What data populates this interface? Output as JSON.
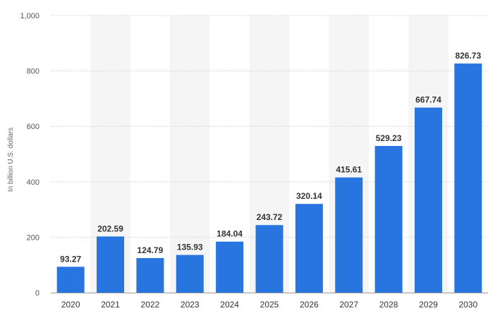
{
  "chart_data": {
    "type": "bar",
    "categories": [
      "2020",
      "2021",
      "2022",
      "2023",
      "2024",
      "2025",
      "2026",
      "2027",
      "2028",
      "2029",
      "2030"
    ],
    "values": [
      93.27,
      202.59,
      124.79,
      135.93,
      184.04,
      243.72,
      320.14,
      415.61,
      529.23,
      667.74,
      826.73
    ],
    "value_labels": [
      "93.27",
      "202.59",
      "124.79",
      "135.93",
      "184.04",
      "243.72",
      "320.14",
      "415.61",
      "529.23",
      "667.74",
      "826.73"
    ],
    "title": "",
    "xlabel": "",
    "ylabel": "In billion U.S. dollars",
    "ylim": [
      0,
      1000
    ],
    "yticks": [
      0,
      200,
      400,
      600,
      800,
      1000
    ],
    "ytick_labels": [
      "0",
      "200",
      "400",
      "600",
      "800",
      "1,000"
    ],
    "grid": true,
    "grid_style": "dotted horizontal",
    "alternating_column_shading": true,
    "colors": {
      "bar": "#2875e0",
      "band": "#f5f5f5",
      "grid": "#cccccc"
    }
  }
}
